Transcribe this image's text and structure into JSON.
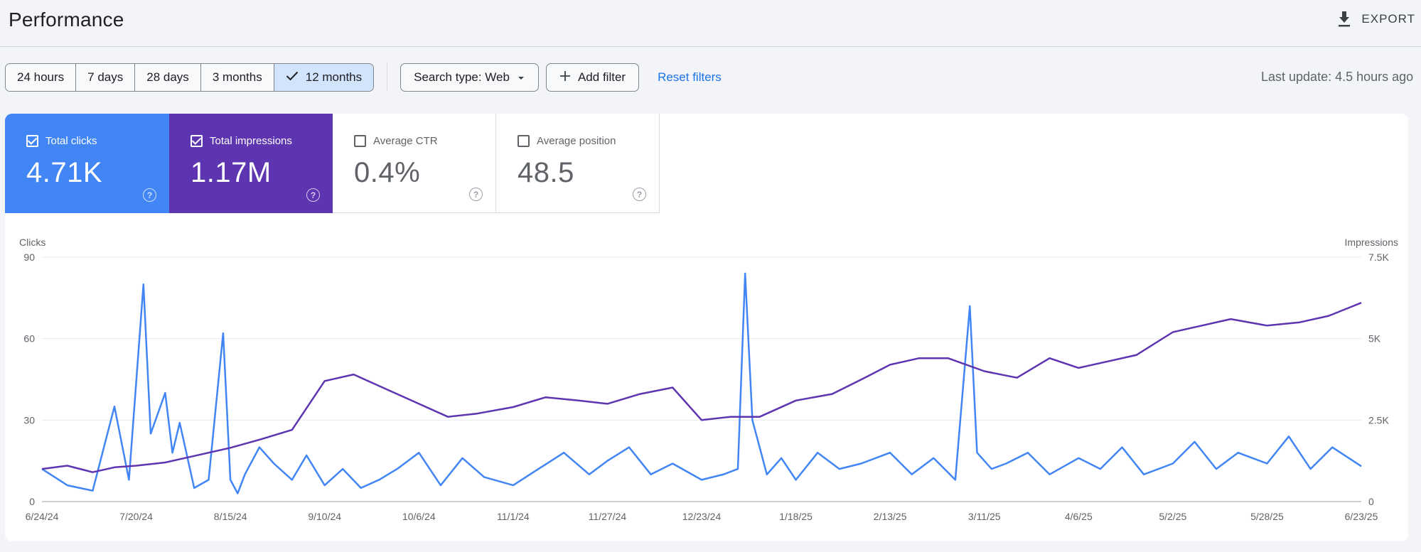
{
  "header": {
    "title": "Performance",
    "export_label": "EXPORT"
  },
  "toolbar": {
    "date_ranges": [
      {
        "label": "24 hours",
        "active": false
      },
      {
        "label": "7 days",
        "active": false
      },
      {
        "label": "28 days",
        "active": false
      },
      {
        "label": "3 months",
        "active": false
      },
      {
        "label": "12 months",
        "active": true
      }
    ],
    "search_type_label": "Search type: Web",
    "add_filter_label": "Add filter",
    "reset_filters_label": "Reset filters",
    "last_update": "Last update: 4.5 hours ago"
  },
  "metrics": [
    {
      "label": "Total clicks",
      "value": "4.71K",
      "checked": true,
      "color": "#4285f4"
    },
    {
      "label": "Total impressions",
      "value": "1.17M",
      "checked": true,
      "color": "#5e35b1"
    },
    {
      "label": "Average CTR",
      "value": "0.4%",
      "checked": false
    },
    {
      "label": "Average position",
      "value": "48.5",
      "checked": false
    }
  ],
  "chart_data": {
    "type": "line",
    "left_axis_label": "Clicks",
    "right_axis_label": "Impressions",
    "left_ticks": [
      "90",
      "60",
      "30",
      "0"
    ],
    "right_ticks": [
      "7.5K",
      "5K",
      "2.5K",
      "0"
    ],
    "ylim_left": [
      0,
      90
    ],
    "ylim_right": [
      0,
      7500
    ],
    "x_ticks": [
      "6/24/24",
      "7/20/24",
      "8/15/24",
      "9/10/24",
      "10/6/24",
      "11/1/24",
      "11/27/24",
      "12/23/24",
      "1/18/25",
      "2/13/25",
      "3/11/25",
      "4/6/25",
      "5/2/25",
      "5/28/25",
      "6/23/25"
    ],
    "grid": true,
    "series": [
      {
        "name": "Clicks",
        "axis": "left",
        "color": "#4285f4",
        "x": [
          "6/24/24",
          "7/1/24",
          "7/8/24",
          "7/14/24",
          "7/18/24",
          "7/22/24",
          "7/24/24",
          "7/28/24",
          "7/30/24",
          "8/1/24",
          "8/5/24",
          "8/9/24",
          "8/13/24",
          "8/15/24",
          "8/17/24",
          "8/19/24",
          "8/23/24",
          "8/27/24",
          "9/1/24",
          "9/5/24",
          "9/10/24",
          "9/15/24",
          "9/20/24",
          "9/25/24",
          "9/30/24",
          "10/6/24",
          "10/12/24",
          "10/18/24",
          "10/24/24",
          "11/1/24",
          "11/8/24",
          "11/15/24",
          "11/22/24",
          "11/27/24",
          "12/3/24",
          "12/9/24",
          "12/15/24",
          "12/23/24",
          "12/29/24",
          "1/2/25",
          "1/4/25",
          "1/6/25",
          "1/10/25",
          "1/14/25",
          "1/18/25",
          "1/24/25",
          "1/30/25",
          "2/5/25",
          "2/13/25",
          "2/19/25",
          "2/25/25",
          "3/3/25",
          "3/7/25",
          "3/9/25",
          "3/13/25",
          "3/17/25",
          "3/23/25",
          "3/29/25",
          "4/6/25",
          "4/12/25",
          "4/18/25",
          "4/24/25",
          "5/2/25",
          "5/8/25",
          "5/14/25",
          "5/20/25",
          "5/28/25",
          "6/3/25",
          "6/9/25",
          "6/15/25",
          "6/23/25"
        ],
        "values": [
          12,
          6,
          4,
          35,
          8,
          80,
          25,
          40,
          18,
          29,
          5,
          8,
          62,
          8,
          3,
          10,
          20,
          14,
          8,
          17,
          6,
          12,
          5,
          8,
          12,
          18,
          6,
          16,
          9,
          6,
          12,
          18,
          10,
          15,
          20,
          10,
          14,
          8,
          10,
          12,
          84,
          30,
          10,
          16,
          8,
          18,
          12,
          14,
          18,
          10,
          16,
          8,
          72,
          18,
          12,
          14,
          18,
          10,
          16,
          12,
          20,
          10,
          14,
          22,
          12,
          18,
          14,
          24,
          12,
          20,
          13
        ]
      },
      {
        "name": "Impressions",
        "axis": "right",
        "color": "#5e35b1",
        "x": [
          "6/24/24",
          "7/1/24",
          "7/8/24",
          "7/14/24",
          "7/20/24",
          "7/28/24",
          "8/5/24",
          "8/15/24",
          "8/23/24",
          "9/1/24",
          "9/10/24",
          "9/18/24",
          "9/26/24",
          "10/6/24",
          "10/14/24",
          "10/22/24",
          "11/1/24",
          "11/10/24",
          "11/19/24",
          "11/27/24",
          "12/6/24",
          "12/15/24",
          "12/23/24",
          "12/31/24",
          "1/8/25",
          "1/18/25",
          "1/28/25",
          "2/6/25",
          "2/13/25",
          "2/21/25",
          "3/1/25",
          "3/11/25",
          "3/20/25",
          "3/29/25",
          "4/6/25",
          "4/14/25",
          "4/22/25",
          "5/2/25",
          "5/10/25",
          "5/18/25",
          "5/28/25",
          "6/6/25",
          "6/14/25",
          "6/23/25"
        ],
        "values": [
          1000,
          1100,
          900,
          1050,
          1100,
          1200,
          1400,
          1650,
          1900,
          2200,
          3700,
          3900,
          3500,
          3000,
          2600,
          2700,
          2900,
          3200,
          3100,
          3000,
          3300,
          3500,
          2500,
          2600,
          2600,
          3100,
          3300,
          3800,
          4200,
          4400,
          4400,
          4000,
          3800,
          4400,
          4100,
          4300,
          4500,
          5200,
          5400,
          5600,
          5400,
          5500,
          5700,
          6100
        ]
      }
    ]
  }
}
